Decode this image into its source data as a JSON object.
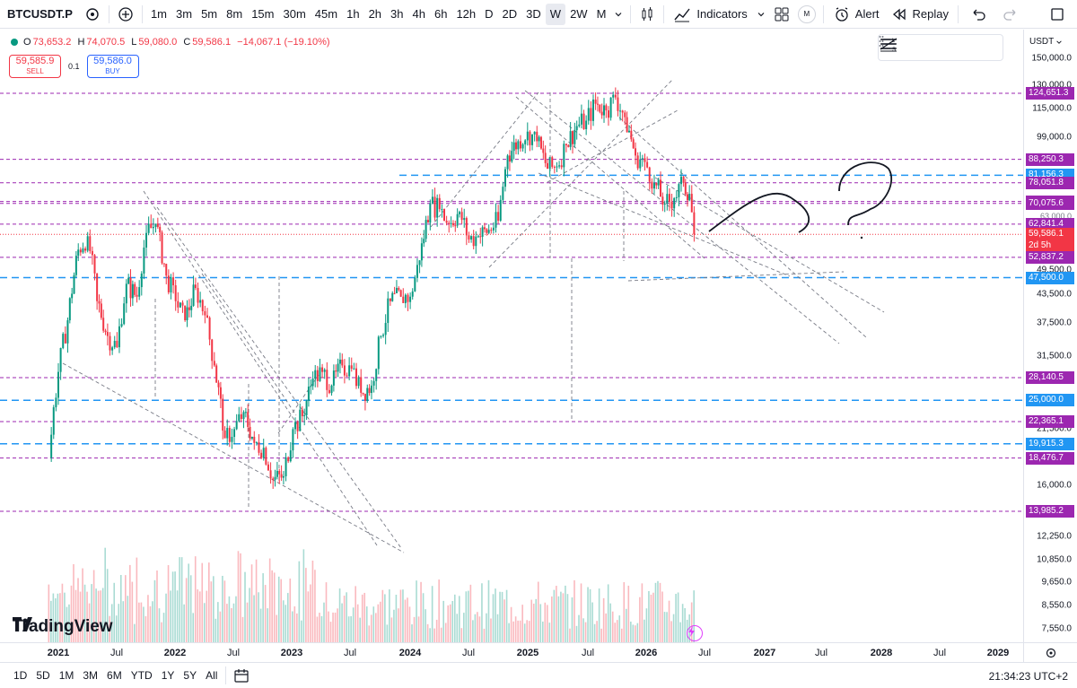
{
  "toolbar": {
    "symbol": "BTCUSDT.P",
    "timeframes": [
      "1m",
      "3m",
      "5m",
      "8m",
      "15m",
      "30m",
      "45m",
      "1h",
      "2h",
      "3h",
      "4h",
      "6h",
      "12h",
      "D",
      "2D",
      "3D",
      "W",
      "2W",
      "M"
    ],
    "active_timeframe": "W",
    "indicators_label": "Indicators",
    "alert_label": "Alert",
    "replay_label": "Replay",
    "m_badge": "M"
  },
  "legend": {
    "o_label": "O",
    "o_value": "73,653.2",
    "h_label": "H",
    "h_value": "74,070.5",
    "l_label": "L",
    "l_value": "59,080.0",
    "c_label": "C",
    "c_value": "59,586.1",
    "change": "−14,067.1 (−19.10%)"
  },
  "trade": {
    "sell_price": "59,585.9",
    "sell_label": "SELL",
    "spread": "0.1",
    "buy_price": "59,586.0",
    "buy_label": "BUY"
  },
  "brand": "TradingView",
  "price_axis": {
    "currency": "USDT",
    "ticks": [
      {
        "v": 150000,
        "t": "150,000.0"
      },
      {
        "v": 130000,
        "t": "130,000.0"
      },
      {
        "v": 115000,
        "t": "115,000.0"
      },
      {
        "v": 99000,
        "t": "99,000.0"
      },
      {
        "v": 49500,
        "t": "49,500.0"
      },
      {
        "v": 43500,
        "t": "43,500.0"
      },
      {
        "v": 37500,
        "t": "37,500.0"
      },
      {
        "v": 31500,
        "t": "31,500.0"
      },
      {
        "v": 21500,
        "t": "21,500.0"
      },
      {
        "v": 16000,
        "t": "16,000.0"
      },
      {
        "v": 12250,
        "t": "12,250.0"
      },
      {
        "v": 10850,
        "t": "10,850.0"
      },
      {
        "v": 9650,
        "t": "9,650.0"
      },
      {
        "v": 8550,
        "t": "8,550.0"
      },
      {
        "v": 7550,
        "t": "7,550.0"
      }
    ],
    "labels": [
      {
        "v": 124651.3,
        "t": "124,651.3",
        "color": "#9c27b0"
      },
      {
        "v": 88250.3,
        "t": "88,250.3",
        "color": "#9c27b0"
      },
      {
        "v": 81156.3,
        "t": "81,156.3",
        "color": "#2196f3"
      },
      {
        "v": 78051.8,
        "t": "78,051.8",
        "color": "#9c27b0"
      },
      {
        "v": 70754.9,
        "t": "70,754.9",
        "color": "#9c27b0"
      },
      {
        "v": 70075.6,
        "t": "70,075.6",
        "color": "#9c27b0"
      },
      {
        "v": 62841.4,
        "t": "62,841.4",
        "color": "#9c27b0"
      },
      {
        "v": 59586.1,
        "t": "59,586.1",
        "color": "#f23645"
      },
      {
        "v": 52837.2,
        "t": "52,837.2",
        "color": "#9c27b0"
      },
      {
        "v": 47500,
        "t": "47,500.0",
        "color": "#2196f3"
      },
      {
        "v": 28140.5,
        "t": "28,140.5",
        "color": "#9c27b0"
      },
      {
        "v": 25000,
        "t": "25,000.0",
        "color": "#2196f3"
      },
      {
        "v": 22365.1,
        "t": "22,365.1",
        "color": "#9c27b0"
      },
      {
        "v": 19915.3,
        "t": "19,915.3",
        "color": "#2196f3"
      },
      {
        "v": 18476.7,
        "t": "18,476.7",
        "color": "#9c27b0"
      },
      {
        "v": 13985.2,
        "t": "13,985.2",
        "color": "#9c27b0"
      }
    ],
    "countdown": "2d 5h",
    "partial_label": "63,000.0"
  },
  "time_axis": [
    {
      "t": "2021",
      "x": 65,
      "bold": true
    },
    {
      "t": "Jul",
      "x": 130
    },
    {
      "t": "2022",
      "x": 195,
      "bold": true
    },
    {
      "t": "Jul",
      "x": 260
    },
    {
      "t": "2023",
      "x": 325,
      "bold": true
    },
    {
      "t": "Jul",
      "x": 390
    },
    {
      "t": "2024",
      "x": 457,
      "bold": true
    },
    {
      "t": "Jul",
      "x": 522
    },
    {
      "t": "2025",
      "x": 588,
      "bold": true
    },
    {
      "t": "Jul",
      "x": 655
    },
    {
      "t": "2026",
      "x": 720,
      "bold": true
    },
    {
      "t": "Jul",
      "x": 785
    },
    {
      "t": "2027",
      "x": 852,
      "bold": true
    },
    {
      "t": "Jul",
      "x": 915
    },
    {
      "t": "2028",
      "x": 982,
      "bold": true
    },
    {
      "t": "Jul",
      "x": 1047
    },
    {
      "t": "2029",
      "x": 1112,
      "bold": true
    }
  ],
  "ranges": [
    "1D",
    "5D",
    "1M",
    "3M",
    "6M",
    "YTD",
    "1Y",
    "5Y",
    "All"
  ],
  "clock": "21:34:23 UTC+2",
  "chart_data": {
    "type": "candlestick",
    "symbol": "BTCUSDT.P",
    "interval": "W",
    "y_scale": "log",
    "horizontal_levels_purple": [
      124651.3,
      88250.3,
      78051.8,
      70754.9,
      70075.6,
      62841.4,
      52837.2,
      28140.5,
      22365.1,
      18476.7,
      13985.2
    ],
    "horizontal_levels_blue": [
      81156.3,
      47500,
      25000,
      19915.3
    ],
    "last_price": 59586.1,
    "weekly_close_path": [
      [
        2020.92,
        18500
      ],
      [
        2021.0,
        29000
      ],
      [
        2021.08,
        38000
      ],
      [
        2021.17,
        55000
      ],
      [
        2021.25,
        59000
      ],
      [
        2021.33,
        42000
      ],
      [
        2021.42,
        35000
      ],
      [
        2021.5,
        33000
      ],
      [
        2021.58,
        46000
      ],
      [
        2021.67,
        43000
      ],
      [
        2021.75,
        60000
      ],
      [
        2021.83,
        63000
      ],
      [
        2021.92,
        48000
      ],
      [
        2022.0,
        42000
      ],
      [
        2022.08,
        38000
      ],
      [
        2022.17,
        45000
      ],
      [
        2022.25,
        39000
      ],
      [
        2022.33,
        30000
      ],
      [
        2022.42,
        20500
      ],
      [
        2022.5,
        21500
      ],
      [
        2022.58,
        23500
      ],
      [
        2022.67,
        20000
      ],
      [
        2022.75,
        19500
      ],
      [
        2022.83,
        16500
      ],
      [
        2022.92,
        16800
      ],
      [
        2023.0,
        21500
      ],
      [
        2023.08,
        23000
      ],
      [
        2023.17,
        28000
      ],
      [
        2023.25,
        29000
      ],
      [
        2023.33,
        27000
      ],
      [
        2023.42,
        30000
      ],
      [
        2023.5,
        29500
      ],
      [
        2023.58,
        26000
      ],
      [
        2023.67,
        27000
      ],
      [
        2023.75,
        35000
      ],
      [
        2023.83,
        42000
      ],
      [
        2023.92,
        43000
      ],
      [
        2024.0,
        43000
      ],
      [
        2024.08,
        52000
      ],
      [
        2024.17,
        70000
      ],
      [
        2024.25,
        68000
      ],
      [
        2024.33,
        63000
      ],
      [
        2024.42,
        67000
      ],
      [
        2024.5,
        58000
      ],
      [
        2024.58,
        59000
      ],
      [
        2024.67,
        61000
      ],
      [
        2024.75,
        64000
      ],
      [
        2024.83,
        90000
      ],
      [
        2024.92,
        97000
      ],
      [
        2025.0,
        102000
      ],
      [
        2025.08,
        97000
      ],
      [
        2025.17,
        84000
      ],
      [
        2025.25,
        85000
      ],
      [
        2025.33,
        95000
      ],
      [
        2025.42,
        105000
      ],
      [
        2025.5,
        108000
      ],
      [
        2025.58,
        118000
      ],
      [
        2025.67,
        114000
      ],
      [
        2025.75,
        122000
      ],
      [
        2025.83,
        110000
      ],
      [
        2025.92,
        90000
      ],
      [
        2026.0,
        87000
      ],
      [
        2026.08,
        78000
      ],
      [
        2026.17,
        70000
      ],
      [
        2026.25,
        72000
      ],
      [
        2026.33,
        78000
      ],
      [
        2026.38,
        73653
      ],
      [
        2026.42,
        59586
      ]
    ],
    "volume_relative": "histogram of weekly volume below price"
  }
}
